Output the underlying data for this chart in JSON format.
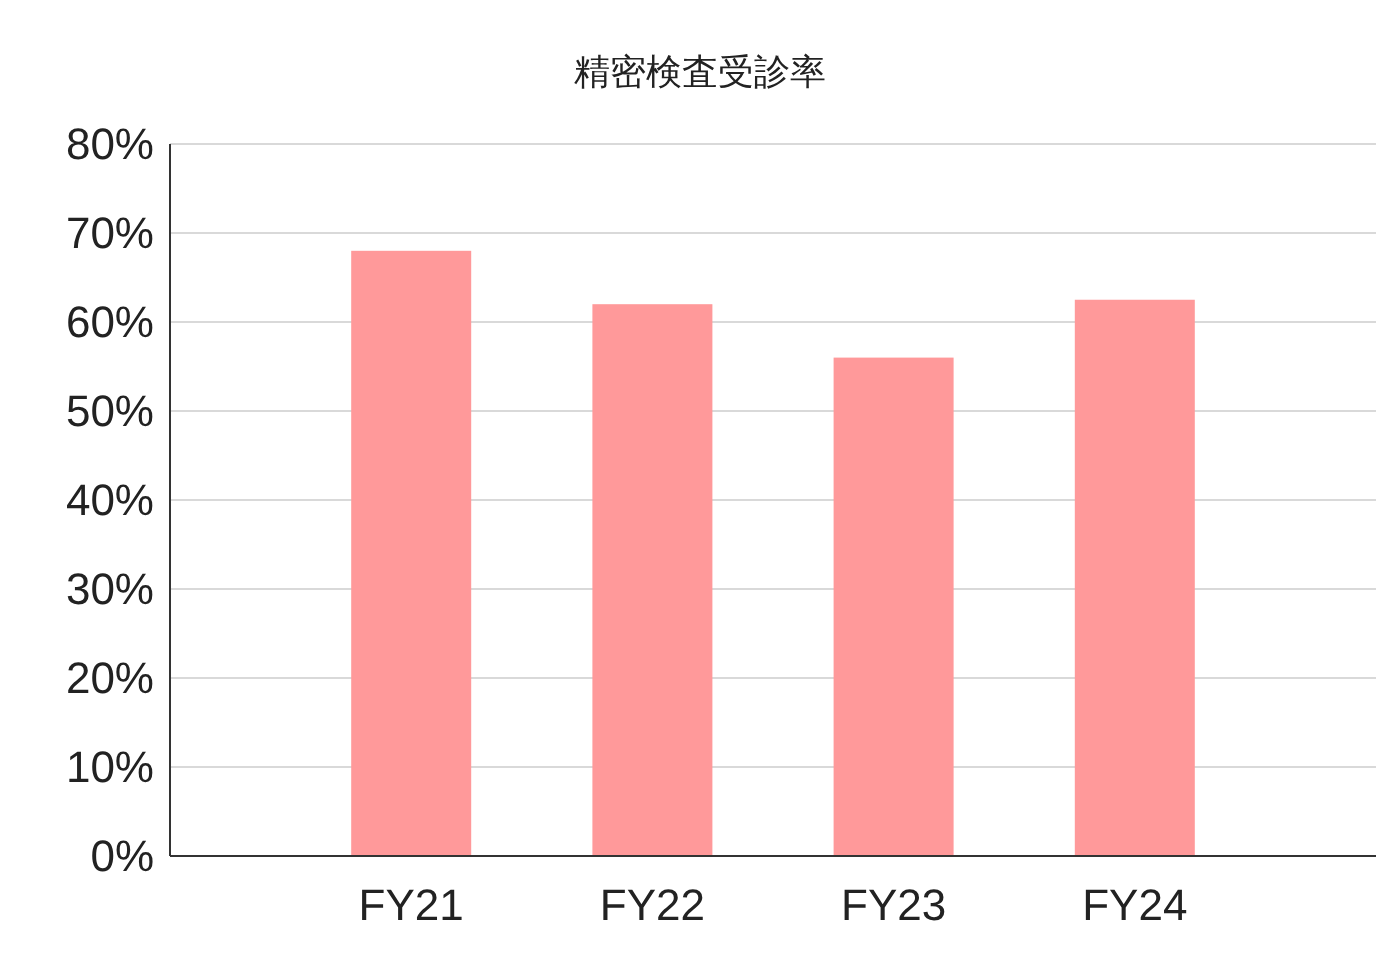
{
  "chart_data": {
    "type": "bar",
    "title": "精密検査受診率",
    "categories": [
      "FY21",
      "FY22",
      "FY23",
      "FY24"
    ],
    "values": [
      68,
      62,
      56,
      62.5
    ],
    "color": "#ff999a",
    "ylim": [
      0,
      80
    ],
    "yticks": [
      {
        "value": 0,
        "label": "0%"
      },
      {
        "value": 10,
        "label": "10%"
      },
      {
        "value": 20,
        "label": "20%"
      },
      {
        "value": 30,
        "label": "30%"
      },
      {
        "value": 40,
        "label": "40%"
      },
      {
        "value": 50,
        "label": "50%"
      },
      {
        "value": 60,
        "label": "60%"
      },
      {
        "value": 70,
        "label": "70%"
      },
      {
        "value": 80,
        "label": "80%"
      }
    ],
    "grid": "y"
  }
}
